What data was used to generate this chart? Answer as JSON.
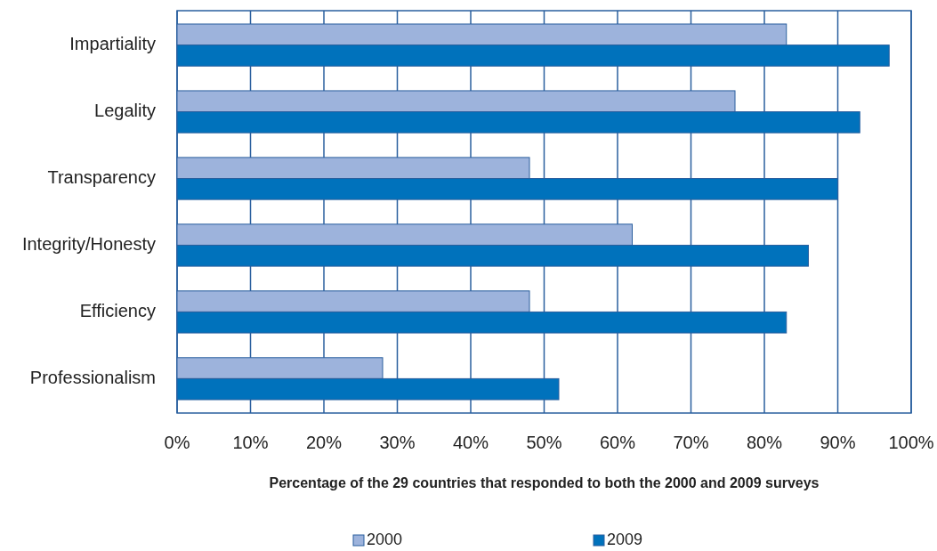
{
  "chart_data": {
    "type": "bar",
    "orientation": "horizontal",
    "xlabel": "Percentage of the 29 countries that responded to both the 2000 and 2009 surveys",
    "categories": [
      "Impartiality",
      "Legality",
      "Transparency",
      "Integrity/Honesty",
      "Efficiency",
      "Professionalism"
    ],
    "series": [
      {
        "name": "2000",
        "color": "#9db3dc",
        "values": [
          83,
          76,
          48,
          62,
          48,
          28
        ]
      },
      {
        "name": "2009",
        "color": "#0072bc",
        "values": [
          97,
          93,
          90,
          86,
          83,
          52
        ]
      }
    ],
    "xlim": [
      0,
      100
    ],
    "xticks": [
      {
        "value": 0,
        "label": "0%"
      },
      {
        "value": 10,
        "label": "10%"
      },
      {
        "value": 20,
        "label": "20%"
      },
      {
        "value": 30,
        "label": "30%"
      },
      {
        "value": 40,
        "label": "40%"
      },
      {
        "value": 50,
        "label": "50%"
      },
      {
        "value": 60,
        "label": "60%"
      },
      {
        "value": 70,
        "label": "70%"
      },
      {
        "value": 80,
        "label": "80%"
      },
      {
        "value": 90,
        "label": "90%"
      },
      {
        "value": 100,
        "label": "100%"
      }
    ],
    "grid": "x",
    "legend": "bottom"
  }
}
